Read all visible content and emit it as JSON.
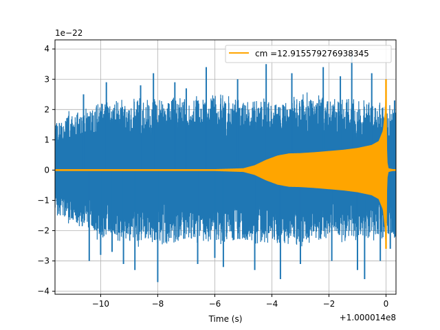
{
  "chart_data": {
    "type": "line",
    "title": "",
    "xlabel": "Time (s)",
    "ylabel": "",
    "x_offset_label": "+1.000014e8",
    "y_scale_label": "1e−22",
    "xlim": [
      -11.6,
      0.35
    ],
    "ylim": [
      -4.1,
      4.3
    ],
    "x_ticks": [
      -10,
      -8,
      -6,
      -4,
      -2,
      0
    ],
    "x_tick_labels": [
      "−10",
      "−8",
      "−6",
      "−4",
      "−2",
      "0"
    ],
    "y_ticks": [
      -4,
      -3,
      -2,
      -1,
      0,
      1,
      2,
      3,
      4
    ],
    "y_tick_labels": [
      "−4",
      "−3",
      "−2",
      "−1",
      "0",
      "1",
      "2",
      "3",
      "4"
    ],
    "grid": true,
    "legend_position": "top-right",
    "series": [
      {
        "kind": "noise",
        "color": "#1f77b4",
        "x_range": [
          -11.6,
          0.35
        ],
        "typical_amplitude": 1.5,
        "max": 3.9,
        "min": -3.7,
        "band_edges": [
          {
            "x": -11.6,
            "upper": 1.6,
            "lower": -1.4
          },
          {
            "x": -10.0,
            "upper": 2.2,
            "lower": -2.2
          },
          {
            "x": -8.0,
            "upper": 2.3,
            "lower": -2.4
          },
          {
            "x": -6.0,
            "upper": 2.4,
            "lower": -2.3
          },
          {
            "x": -4.0,
            "upper": 2.3,
            "lower": -2.4
          },
          {
            "x": -2.0,
            "upper": 2.4,
            "lower": -2.3
          },
          {
            "x": 0.0,
            "upper": 2.2,
            "lower": -2.2
          },
          {
            "x": 0.35,
            "upper": 2.1,
            "lower": -2.1
          }
        ],
        "spikes": [
          {
            "x": -11.55,
            "y": 1.5
          },
          {
            "x": -10.6,
            "y": 2.5
          },
          {
            "x": -10.4,
            "y": -3.0
          },
          {
            "x": -10.0,
            "y": -2.8
          },
          {
            "x": -9.8,
            "y": 2.9
          },
          {
            "x": -9.6,
            "y": -2.7
          },
          {
            "x": -9.2,
            "y": -3.1
          },
          {
            "x": -8.8,
            "y": -3.3
          },
          {
            "x": -8.6,
            "y": 2.8
          },
          {
            "x": -8.15,
            "y": 3.2
          },
          {
            "x": -8.0,
            "y": -3.7
          },
          {
            "x": -7.4,
            "y": 2.9
          },
          {
            "x": -7.0,
            "y": 2.7
          },
          {
            "x": -6.6,
            "y": -3.1
          },
          {
            "x": -6.3,
            "y": 3.4
          },
          {
            "x": -6.0,
            "y": -2.9
          },
          {
            "x": -5.7,
            "y": -3.2
          },
          {
            "x": -5.2,
            "y": 3.0
          },
          {
            "x": -4.6,
            "y": -3.3
          },
          {
            "x": -4.2,
            "y": 3.5
          },
          {
            "x": -3.7,
            "y": -3.6
          },
          {
            "x": -3.3,
            "y": 3.2
          },
          {
            "x": -3.0,
            "y": -3.1
          },
          {
            "x": -2.2,
            "y": 3.4
          },
          {
            "x": -1.9,
            "y": -3.0
          },
          {
            "x": -1.6,
            "y": 3.1
          },
          {
            "x": -1.2,
            "y": 3.9
          },
          {
            "x": -1.0,
            "y": -3.3
          },
          {
            "x": -0.75,
            "y": -3.6
          },
          {
            "x": -0.5,
            "y": 3.2
          },
          {
            "x": -0.2,
            "y": -3.0
          },
          {
            "x": 0.15,
            "y": -2.6
          },
          {
            "x": 0.3,
            "y": 2.3
          }
        ]
      },
      {
        "kind": "envelope",
        "name": "cm =12.915579276938345",
        "color": "#ffa500",
        "envelope": [
          {
            "x": -11.6,
            "amp": 0.0
          },
          {
            "x": -7.0,
            "amp": 0.0
          },
          {
            "x": -6.0,
            "amp": 0.02
          },
          {
            "x": -5.0,
            "amp": 0.05
          },
          {
            "x": -4.6,
            "amp": 0.15
          },
          {
            "x": -4.2,
            "amp": 0.33
          },
          {
            "x": -3.8,
            "amp": 0.47
          },
          {
            "x": -3.4,
            "amp": 0.54
          },
          {
            "x": -3.0,
            "amp": 0.55
          },
          {
            "x": -2.5,
            "amp": 0.58
          },
          {
            "x": -2.0,
            "amp": 0.62
          },
          {
            "x": -1.5,
            "amp": 0.66
          },
          {
            "x": -1.0,
            "amp": 0.72
          },
          {
            "x": -0.5,
            "amp": 0.82
          },
          {
            "x": -0.25,
            "amp": 0.95
          },
          {
            "x": -0.1,
            "amp": 1.3
          },
          {
            "x": -0.02,
            "amp": 2.0
          },
          {
            "x": 0.0,
            "amp": 2.8
          },
          {
            "x": 0.03,
            "amp": 0.3
          },
          {
            "x": 0.08,
            "amp": 0.05
          },
          {
            "x": 0.35,
            "amp": 0.0
          }
        ],
        "peak": {
          "x": 0.0,
          "max": 3.0,
          "min": -2.6
        }
      }
    ]
  }
}
